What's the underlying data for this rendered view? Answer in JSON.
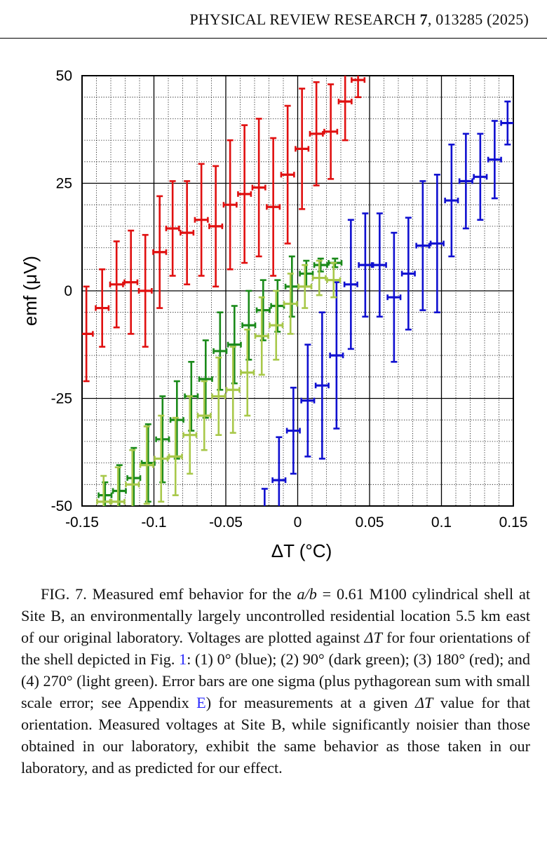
{
  "header": {
    "journal": "PHYSICAL REVIEW RESEARCH",
    "volume": "7",
    "article": ", 013285 (2025)"
  },
  "chart_data": {
    "type": "scatter",
    "title": "",
    "xlabel": "ΔT (°C)",
    "ylabel": "emf (μV)",
    "xlim": [
      -0.15,
      0.15
    ],
    "ylim": [
      -50,
      50
    ],
    "xticks": [
      "-0.15",
      "-0.1",
      "-0.05",
      "0",
      "0.05",
      "0.1",
      "0.15"
    ],
    "yticks": [
      "50",
      "25",
      "0",
      "-25",
      "-50"
    ],
    "grid": "major solid, minor dotted",
    "series": [
      {
        "key": "red",
        "color": "#e01010",
        "x": [
          -0.147,
          -0.136,
          -0.126,
          -0.116,
          -0.106,
          -0.096,
          -0.087,
          -0.077,
          -0.067,
          -0.057,
          -0.047,
          -0.037,
          -0.027,
          -0.017,
          -0.007,
          0.003,
          0.013,
          0.023,
          0.033,
          0.042
        ],
        "y": [
          -10,
          -4,
          1.5,
          2,
          0,
          9,
          14.5,
          13.5,
          16.5,
          15,
          20,
          22.5,
          24,
          19.5,
          27,
          33,
          36.5,
          37,
          44,
          49
        ],
        "err": [
          11,
          9,
          10,
          12,
          13,
          13,
          11,
          12,
          13,
          14,
          15,
          16,
          16,
          16,
          16,
          14,
          12,
          11,
          9,
          4
        ]
      },
      {
        "key": "blue",
        "color": "#1010d0",
        "x": [
          -0.023,
          -0.013,
          -0.003,
          0.007,
          0.017,
          0.027,
          0.037,
          0.047,
          0.057,
          0.067,
          0.077,
          0.087,
          0.097,
          0.107,
          0.117,
          0.127,
          0.137,
          0.146
        ],
        "y": [
          -52,
          -44,
          -32.5,
          -25.5,
          -22,
          -15,
          1.5,
          6,
          6,
          -1.5,
          4,
          10.5,
          11,
          21,
          25.5,
          26.5,
          30.5,
          39
        ],
        "err": [
          6,
          10,
          10,
          13,
          17,
          17,
          15,
          12,
          12,
          15,
          13,
          15,
          16,
          13,
          11,
          10,
          9,
          5
        ]
      },
      {
        "key": "dark-green",
        "color": "#1a8a1a",
        "x": [
          -0.134,
          -0.124,
          -0.114,
          -0.104,
          -0.094,
          -0.084,
          -0.074,
          -0.064,
          -0.054,
          -0.044,
          -0.034,
          -0.024,
          -0.014,
          -0.004,
          0.006,
          0.016,
          0.026
        ],
        "y": [
          -47.5,
          -46.5,
          -43.5,
          -40,
          -34.5,
          -30,
          -24.5,
          -20.5,
          -14,
          -12.5,
          -8,
          -4.5,
          -3.5,
          1,
          4,
          6,
          6.5
        ],
        "err": [
          3,
          6,
          7,
          9,
          10,
          9,
          8,
          9,
          9,
          9,
          8,
          7,
          6,
          7,
          3,
          1.5,
          1
        ]
      },
      {
        "key": "light-green",
        "color": "#a8c84a",
        "x": [
          -0.135,
          -0.125,
          -0.115,
          -0.105,
          -0.095,
          -0.085,
          -0.075,
          -0.065,
          -0.055,
          -0.045,
          -0.035,
          -0.025,
          -0.015,
          -0.005,
          0.005,
          0.015,
          0.025
        ],
        "y": [
          -49,
          -49,
          -45,
          -40.5,
          -39,
          -38.5,
          -33.5,
          -29,
          -24.5,
          -23,
          -19,
          -10.5,
          -8,
          -3,
          1,
          3,
          2.5
        ],
        "err": [
          6,
          8,
          8,
          9,
          10,
          9,
          9,
          8,
          9,
          10,
          10,
          9,
          8,
          7,
          5,
          4,
          4
        ]
      }
    ]
  },
  "caption": {
    "fig_label": "FIG. 7.",
    "part1": " Measured emf behavior for the ",
    "math_ab": "a/b",
    "part2": " = 0.61 M100 cylindrical shell at Site B, an environmentally largely uncontrolled residential location 5.5 km east of our original laboratory. Voltages are plotted against ",
    "math_dt1": "ΔT",
    "part3": " for four orientations of the shell depicted in Fig. ",
    "ref_fig": "1",
    "part4": ": (1) 0° (blue); (2) 90° (dark green); (3) 180° (red); and (4) 270° (light green). Error bars are one sigma (plus pythagorean sum with small scale error; see Appendix ",
    "ref_app": "E",
    "part5": ") for measurements at a given ",
    "math_dt2": "ΔT",
    "part6": " value for that orientation. Measured voltages at Site B, while significantly noisier than those obtained in our laboratory, exhibit the same behavior as those taken in our laboratory, and as predicted for our effect."
  }
}
